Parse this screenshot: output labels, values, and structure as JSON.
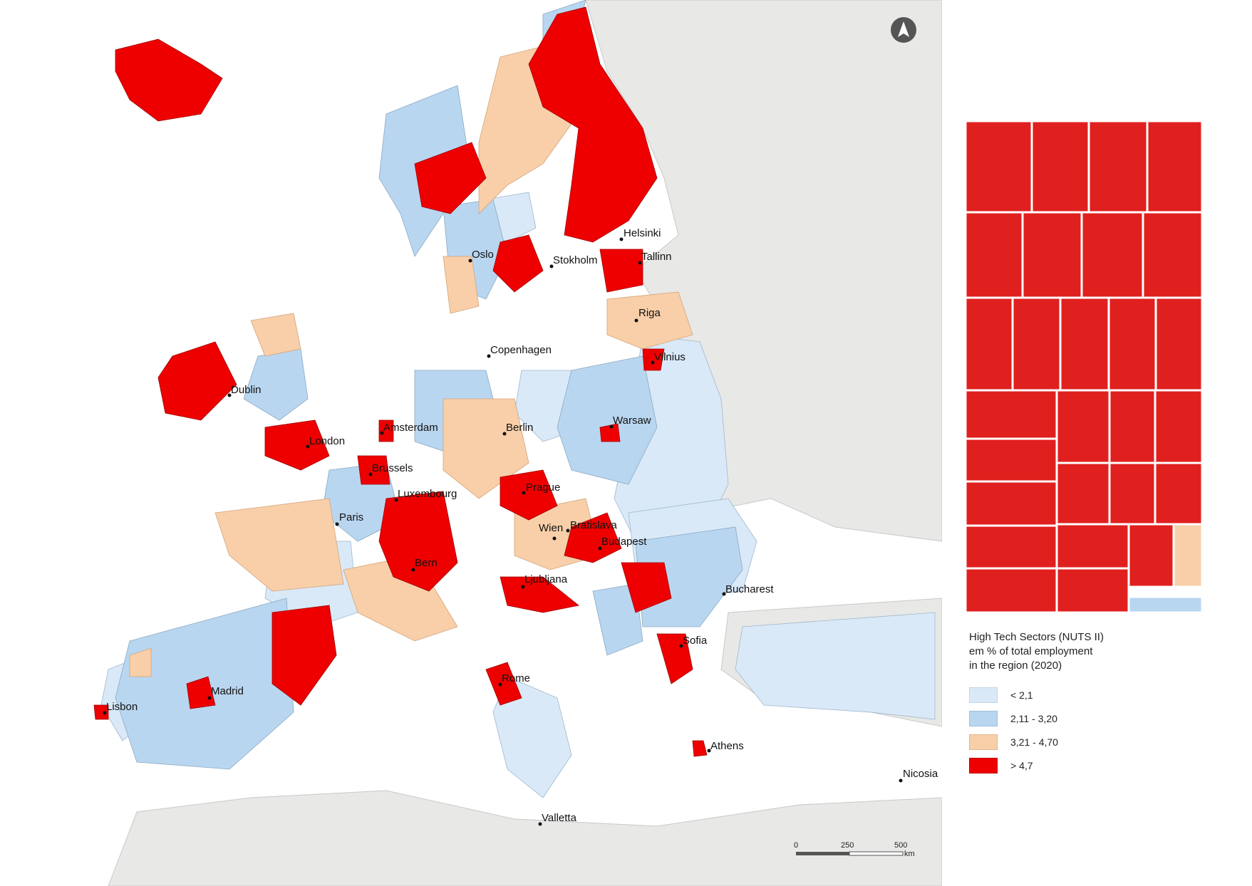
{
  "colors": {
    "lt_2_1": "#d9e9f8",
    "r_2_11_3_20": "#b9d6f0",
    "r_3_21_4_70": "#f8cfa9",
    "gt_4_7": "#ee0000",
    "outside": "#e8e8e6",
    "sea": "#ffffff",
    "treemap_red": "#e0201f"
  },
  "legend": {
    "title_line1": "High Tech Sectors (NUTS II)",
    "title_line2": "em % of total employment",
    "title_line3": "in the region (2020)",
    "items": [
      {
        "label": "< 2,1",
        "color_key": "lt_2_1"
      },
      {
        "label": "2,11 - 3,20",
        "color_key": "r_2_11_3_20"
      },
      {
        "label": "3,21 - 4,70",
        "color_key": "r_3_21_4_70"
      },
      {
        "label": "> 4,7",
        "color_key": "gt_4_7"
      }
    ]
  },
  "cities": [
    "Helsinki",
    "Oslo",
    "Stokholm",
    "Tallinn",
    "Riga",
    "Copenhagen",
    "Vilnius",
    "Dublin",
    "Amsterdam",
    "Berlin",
    "Warsaw",
    "London",
    "Brussels",
    "Luxembourg",
    "Prague",
    "Paris",
    "Wien",
    "Bratislava",
    "Budapest",
    "Bern",
    "Ljubljana",
    "Bucharest",
    "Sofia",
    "Rome",
    "Madrid",
    "Lisbon",
    "Athens",
    "Nicosia",
    "Valletta"
  ],
  "scale_bar": {
    "ticks": [
      "0",
      "250",
      "500"
    ],
    "unit": "km"
  },
  "north_arrow_icon": "north-arrow-icon"
}
